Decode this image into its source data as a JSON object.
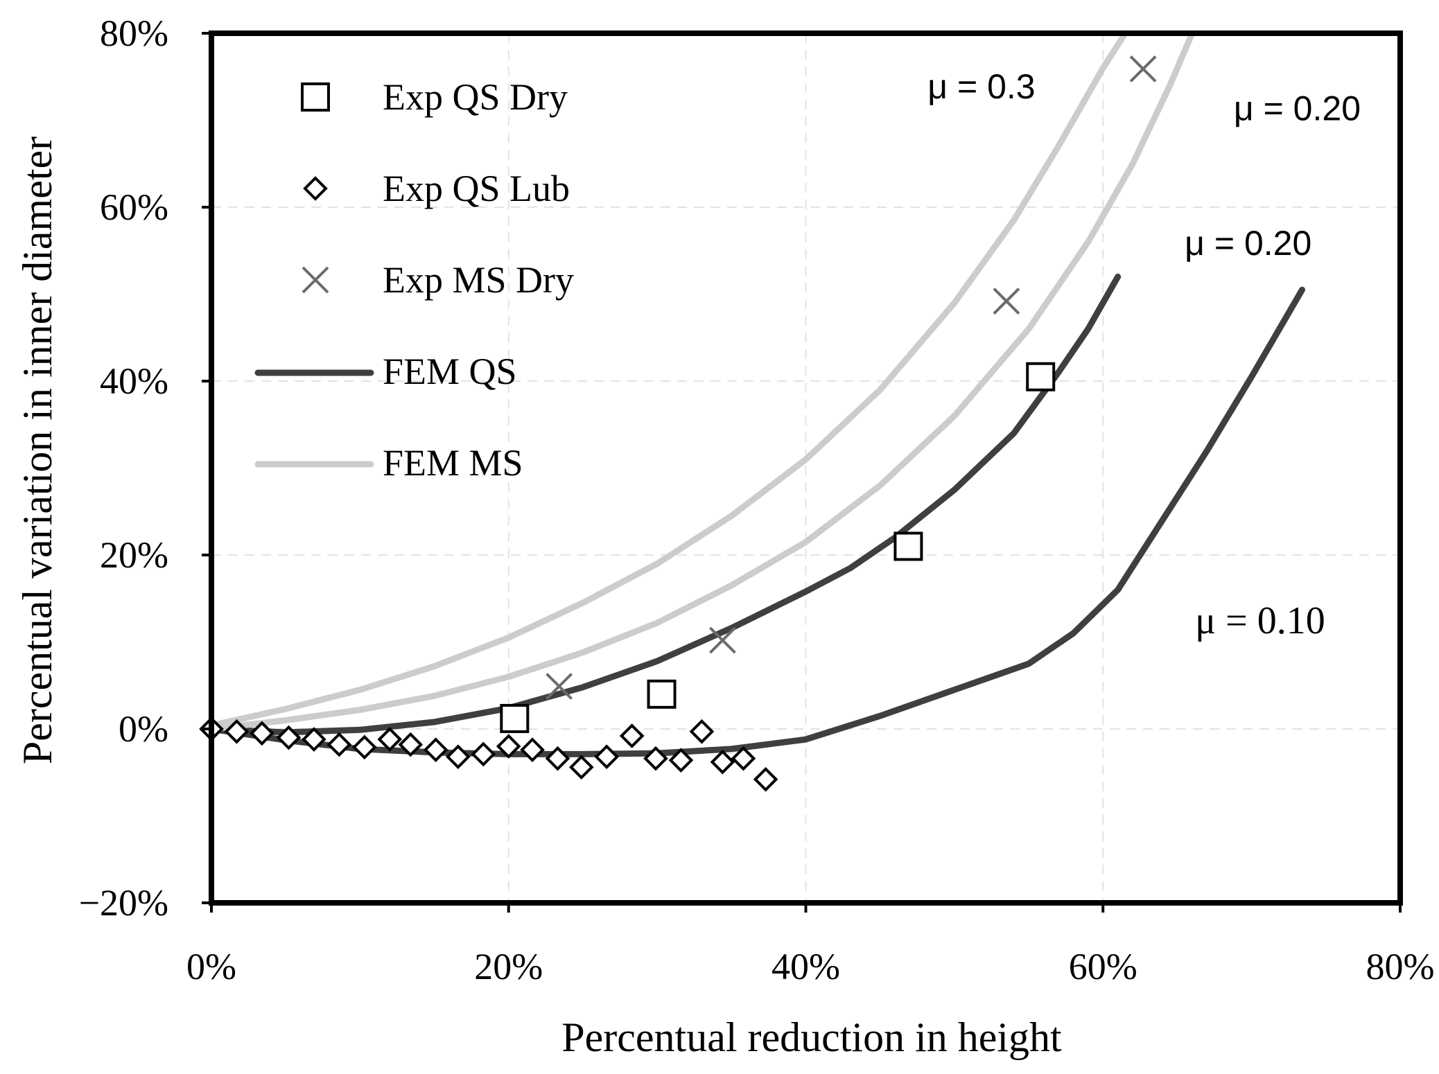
{
  "chart_data": {
    "type": "scatter",
    "xlabel": "Percentual reduction in height",
    "ylabel": "Percentual variation in inner diameter",
    "xlim": [
      0,
      80
    ],
    "ylim": [
      -20,
      80
    ],
    "x_ticks": [
      0,
      20,
      40,
      60,
      80
    ],
    "y_ticks": [
      -20,
      0,
      20,
      40,
      60,
      80
    ],
    "x_tick_labels": [
      "0%",
      "20%",
      "40%",
      "60%",
      "80%"
    ],
    "y_tick_labels": [
      "−20%",
      "0%",
      "20%",
      "40%",
      "60%",
      "80%"
    ],
    "grid": true,
    "legend_position": "top-left",
    "series": [
      {
        "name": "Exp QS Dry",
        "kind": "markers",
        "marker": "square",
        "color": "#000000",
        "points": [
          [
            20.4,
            1.2
          ],
          [
            30.3,
            4.0
          ],
          [
            46.9,
            21.0
          ],
          [
            55.8,
            40.5
          ]
        ]
      },
      {
        "name": "Exp QS Lub",
        "kind": "markers",
        "marker": "diamond",
        "color": "#000000",
        "points": [
          [
            0,
            0
          ],
          [
            1.7,
            -0.3
          ],
          [
            3.4,
            -0.5
          ],
          [
            5.2,
            -1.0
          ],
          [
            6.9,
            -1.2
          ],
          [
            8.6,
            -1.8
          ],
          [
            10.3,
            -2.1
          ],
          [
            12.0,
            -1.2
          ],
          [
            13.4,
            -1.8
          ],
          [
            15.1,
            -2.4
          ],
          [
            16.6,
            -3.2
          ],
          [
            18.3,
            -2.9
          ],
          [
            20.0,
            -2.0
          ],
          [
            21.6,
            -2.4
          ],
          [
            23.3,
            -3.4
          ],
          [
            24.9,
            -4.4
          ],
          [
            26.6,
            -3.2
          ],
          [
            28.3,
            -0.8
          ],
          [
            29.9,
            -3.4
          ],
          [
            31.6,
            -3.6
          ],
          [
            33.0,
            -0.3
          ],
          [
            34.4,
            -3.8
          ],
          [
            35.8,
            -3.4
          ],
          [
            37.3,
            -5.8
          ]
        ]
      },
      {
        "name": "Exp MS Dry",
        "kind": "markers",
        "marker": "x",
        "color": "#6b6b6b",
        "points": [
          [
            23.4,
            4.9
          ],
          [
            34.4,
            10.2
          ],
          [
            53.5,
            49.2
          ],
          [
            62.7,
            75.9
          ]
        ]
      },
      {
        "name": "FEM QS",
        "kind": "line",
        "color": "#3f3f3f",
        "curves": [
          {
            "label": "μ = 0.20",
            "points": [
              [
                0,
                0
              ],
              [
                5,
                -0.4
              ],
              [
                10,
                -0.1
              ],
              [
                15,
                0.8
              ],
              [
                20,
                2.4
              ],
              [
                25,
                4.8
              ],
              [
                30,
                7.8
              ],
              [
                35,
                11.6
              ],
              [
                40,
                15.8
              ],
              [
                43,
                18.5
              ],
              [
                46,
                22.0
              ],
              [
                50,
                27.5
              ],
              [
                54,
                34.0
              ],
              [
                57,
                41.0
              ],
              [
                59,
                46.0
              ],
              [
                61,
                52.0
              ]
            ]
          },
          {
            "label": "μ = 0.10",
            "points": [
              [
                0,
                0
              ],
              [
                5,
                -1.3
              ],
              [
                10,
                -2.3
              ],
              [
                15,
                -2.7
              ],
              [
                20,
                -2.9
              ],
              [
                25,
                -2.9
              ],
              [
                30,
                -2.8
              ],
              [
                35,
                -2.3
              ],
              [
                40,
                -1.2
              ],
              [
                45,
                1.5
              ],
              [
                50,
                4.5
              ],
              [
                55,
                7.5
              ],
              [
                58,
                11.0
              ],
              [
                61,
                16.0
              ],
              [
                64,
                24.0
              ],
              [
                67,
                32.0
              ],
              [
                70,
                40.5
              ],
              [
                73.4,
                50.5
              ]
            ]
          }
        ]
      },
      {
        "name": "FEM MS",
        "kind": "line",
        "color": "#cccccc",
        "curves": [
          {
            "label": "μ = 0.3",
            "points": [
              [
                0,
                0.4
              ],
              [
                5,
                2.3
              ],
              [
                10,
                4.5
              ],
              [
                15,
                7.2
              ],
              [
                20,
                10.5
              ],
              [
                25,
                14.5
              ],
              [
                30,
                19.0
              ],
              [
                35,
                24.5
              ],
              [
                40,
                31.0
              ],
              [
                45,
                39.0
              ],
              [
                50,
                49.0
              ],
              [
                54,
                58.5
              ],
              [
                57,
                67.0
              ],
              [
                60,
                76.0
              ],
              [
                61.5,
                80.0
              ]
            ]
          },
          {
            "label": "μ = 0.20",
            "points": [
              [
                0,
                0
              ],
              [
                5,
                1.0
              ],
              [
                10,
                2.2
              ],
              [
                15,
                3.8
              ],
              [
                20,
                6.0
              ],
              [
                25,
                8.8
              ],
              [
                30,
                12.2
              ],
              [
                35,
                16.5
              ],
              [
                40,
                21.5
              ],
              [
                45,
                28.0
              ],
              [
                50,
                36.0
              ],
              [
                55,
                46.0
              ],
              [
                59,
                56.0
              ],
              [
                62,
                65.0
              ],
              [
                64.5,
                74.0
              ],
              [
                66,
                80.0
              ]
            ]
          }
        ]
      }
    ],
    "annotations": [
      {
        "text": "μ = 0.3",
        "x": 48.2,
        "y": 72.5,
        "style": "sans"
      },
      {
        "text": "μ = 0.20",
        "x": 68.8,
        "y": 70.0,
        "style": "sans"
      },
      {
        "text": "μ = 0.20",
        "x": 65.5,
        "y": 54.5,
        "style": "sans"
      },
      {
        "text": "μ = 0.10",
        "x": 66.2,
        "y": 11.0,
        "style": "serif"
      }
    ]
  }
}
